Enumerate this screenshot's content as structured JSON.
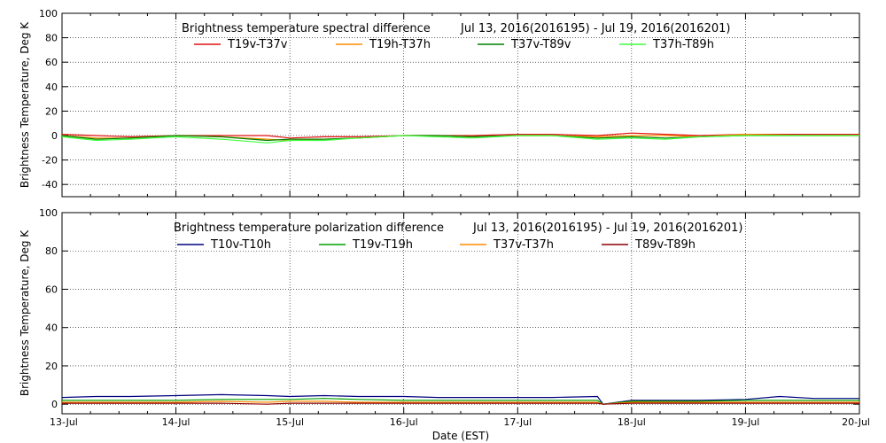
{
  "chart_data": [
    {
      "type": "line",
      "title": "Brightness temperature spectral difference",
      "date_range": "Jul 13, 2016(2016195) - Jul 19, 2016(2016201)",
      "ylabel": "Brightness Temperature, Deg K",
      "xlabel": "",
      "ylim": [
        -50,
        100
      ],
      "yticks": [
        -40,
        -20,
        0,
        20,
        40,
        60,
        80,
        100
      ],
      "xlim": [
        "2016-07-13",
        "2016-07-20"
      ],
      "xticks": [
        "13-Jul",
        "14-Jul",
        "15-Jul",
        "16-Jul",
        "17-Jul",
        "18-Jul",
        "19-Jul",
        "20-Jul"
      ],
      "grid": true,
      "legend_position": "top",
      "series": [
        {
          "name": "T19v-T37v",
          "color": "#e01010",
          "x": [
            13.0,
            13.3,
            13.6,
            14.0,
            14.4,
            14.8,
            15.0,
            15.3,
            15.6,
            16.0,
            16.3,
            16.6,
            17.0,
            17.3,
            17.7,
            18.0,
            18.3,
            18.6,
            19.0,
            19.5,
            20.0
          ],
          "y": [
            1,
            0,
            -1,
            0,
            0,
            0,
            -2,
            -1,
            -1,
            0,
            0,
            0,
            1,
            1,
            0,
            2,
            1,
            0,
            1,
            1,
            1
          ]
        },
        {
          "name": "T19h-T37h",
          "color": "#ff8c00",
          "x": [
            13.0,
            13.3,
            13.6,
            14.0,
            14.4,
            14.8,
            15.0,
            15.3,
            15.6,
            16.0,
            16.3,
            16.6,
            17.0,
            17.3,
            17.7,
            18.0,
            18.3,
            18.6,
            19.0,
            19.5,
            20.0
          ],
          "y": [
            0,
            -2,
            -2,
            0,
            -1,
            -3,
            -4,
            -3,
            -2,
            0,
            0,
            -1,
            0,
            0,
            -1,
            0,
            0,
            -1,
            1,
            0,
            0
          ]
        },
        {
          "name": "T37v-T89v",
          "color": "#008000",
          "x": [
            13.0,
            13.3,
            13.6,
            14.0,
            14.4,
            14.8,
            15.0,
            15.3,
            15.6,
            16.0,
            16.3,
            16.6,
            17.0,
            17.3,
            17.7,
            18.0,
            18.3,
            18.6,
            19.0,
            19.5,
            20.0
          ],
          "y": [
            0,
            -3,
            -2,
            0,
            -1,
            -4,
            -3,
            -3,
            -2,
            0,
            0,
            -1,
            0,
            0,
            -2,
            -1,
            -2,
            -1,
            0,
            0,
            0
          ]
        },
        {
          "name": "T37h-T89h",
          "color": "#40ff40",
          "x": [
            13.0,
            13.3,
            13.6,
            14.0,
            14.4,
            14.8,
            15.0,
            15.3,
            15.6,
            16.0,
            16.3,
            16.6,
            17.0,
            17.3,
            17.7,
            18.0,
            18.3,
            18.6,
            19.0,
            19.5,
            20.0
          ],
          "y": [
            -1,
            -4,
            -3,
            -1,
            -3,
            -6,
            -4,
            -4,
            -2,
            0,
            -1,
            -2,
            0,
            0,
            -3,
            -2,
            -3,
            -1,
            0,
            0,
            0
          ]
        }
      ]
    },
    {
      "type": "line",
      "title": "Brightness temperature polarization difference",
      "date_range": "Jul 13, 2016(2016195) - Jul 19, 2016(2016201)",
      "ylabel": "Brightness Temperature, Deg K",
      "xlabel": "Date (EST)",
      "ylim": [
        -5,
        100
      ],
      "yticks": [
        0,
        20,
        40,
        60,
        80,
        100
      ],
      "xlim": [
        "2016-07-13",
        "2016-07-20"
      ],
      "xticks": [
        "13-Jul",
        "14-Jul",
        "15-Jul",
        "16-Jul",
        "17-Jul",
        "18-Jul",
        "19-Jul",
        "20-Jul"
      ],
      "grid": true,
      "legend_position": "top",
      "series": [
        {
          "name": "T10v-T10h",
          "color": "#000080",
          "x": [
            13.0,
            13.3,
            13.6,
            14.0,
            14.4,
            14.8,
            15.0,
            15.3,
            15.6,
            16.0,
            16.3,
            16.6,
            17.0,
            17.3,
            17.7,
            17.75,
            18.0,
            18.3,
            18.6,
            19.0,
            19.3,
            19.6,
            20.0
          ],
          "y": [
            3.5,
            4,
            4,
            4.5,
            5,
            4.5,
            4,
            4.5,
            4,
            4,
            3.5,
            3.5,
            3.5,
            3.5,
            4,
            0,
            2,
            2,
            2,
            2.5,
            4,
            3,
            3
          ]
        },
        {
          "name": "T19v-T19h",
          "color": "#00a000",
          "x": [
            13.0,
            13.3,
            13.6,
            14.0,
            14.4,
            14.8,
            15.0,
            15.3,
            15.6,
            16.0,
            16.3,
            16.6,
            17.0,
            17.3,
            17.7,
            17.75,
            18.0,
            18.3,
            18.6,
            19.0,
            19.3,
            19.6,
            20.0
          ],
          "y": [
            2,
            2,
            2,
            2,
            2.5,
            2.5,
            2.5,
            3,
            2.5,
            2,
            2,
            2,
            2,
            2,
            2,
            0,
            1.5,
            1.5,
            1.5,
            2,
            2,
            2,
            2
          ]
        },
        {
          "name": "T37v-T37h",
          "color": "#ff8c00",
          "x": [
            13.0,
            13.3,
            13.6,
            14.0,
            14.4,
            14.8,
            15.0,
            15.3,
            15.6,
            16.0,
            16.3,
            16.6,
            17.0,
            17.3,
            17.7,
            17.75,
            18.0,
            18.3,
            18.6,
            19.0,
            19.3,
            19.6,
            20.0
          ],
          "y": [
            1,
            1,
            1,
            1,
            1.5,
            1,
            1.5,
            1.5,
            1,
            1,
            1,
            1,
            1,
            1,
            1,
            0,
            1,
            1,
            1,
            1,
            1,
            1,
            1
          ]
        },
        {
          "name": "T89v-T89h",
          "color": "#8b0000",
          "x": [
            13.0,
            13.3,
            13.6,
            14.0,
            14.4,
            14.8,
            15.0,
            15.3,
            15.6,
            16.0,
            16.3,
            16.6,
            17.0,
            17.3,
            17.7,
            17.75,
            18.0,
            18.3,
            18.6,
            19.0,
            19.3,
            19.6,
            20.0
          ],
          "y": [
            0.5,
            0.5,
            0.5,
            0.5,
            0.5,
            0,
            0.5,
            0.5,
            0.5,
            0.5,
            0.5,
            0.5,
            0.5,
            0.5,
            0.5,
            0,
            0.5,
            0.5,
            0.5,
            0.5,
            0.5,
            0.5,
            0.5
          ]
        }
      ]
    }
  ]
}
